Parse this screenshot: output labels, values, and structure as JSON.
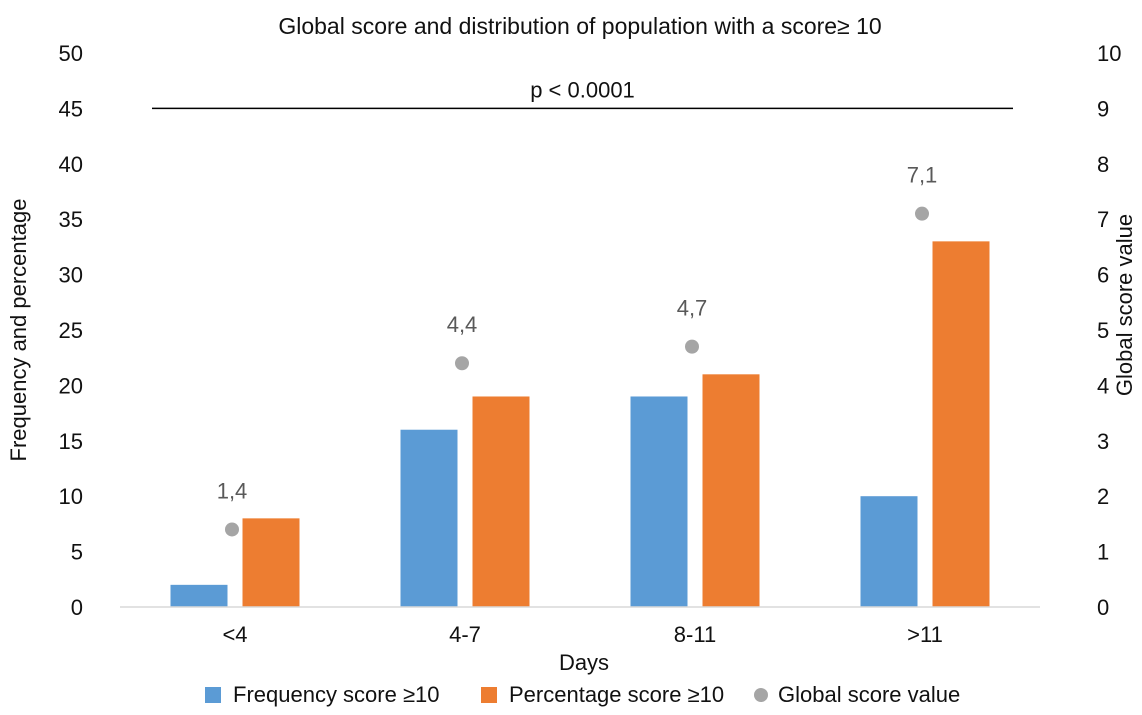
{
  "chart_data": {
    "type": "bar",
    "title": "Global score and distribution of population with a score≥ 10",
    "xlabel": "Days",
    "ylabel": "Frequency  and percentage",
    "y2label": "Global score value",
    "categories": [
      "<4",
      "4-7",
      "8-11",
      ">11"
    ],
    "ylim": [
      0,
      50
    ],
    "y2lim": [
      0,
      10
    ],
    "yticks": [
      "0",
      "5",
      "10",
      "15",
      "20",
      "25",
      "30",
      "35",
      "40",
      "45",
      "50"
    ],
    "y2ticks": [
      "0",
      "1",
      "2",
      "3",
      "4",
      "5",
      "6",
      "7",
      "8",
      "9",
      "10"
    ],
    "grid": false,
    "legend_position": "bottom",
    "series": [
      {
        "name": "Frequency score ≥10",
        "type": "bar",
        "axis": "left",
        "color": "#5B9BD5",
        "values": [
          2,
          16,
          19,
          10
        ]
      },
      {
        "name": "Percentage score ≥10",
        "type": "bar",
        "axis": "left",
        "color": "#ED7D31",
        "values": [
          8,
          19,
          21,
          33
        ]
      },
      {
        "name": "Global score value",
        "type": "scatter",
        "axis": "right",
        "color": "#A5A5A5",
        "values": [
          1.4,
          4.4,
          4.7,
          7.1
        ],
        "data_labels": [
          "1,4",
          "4,4",
          "4,7",
          "7,1"
        ]
      }
    ],
    "annotations": [
      {
        "text": "p < 0.0001",
        "type": "significance-line",
        "y": 45
      }
    ]
  }
}
